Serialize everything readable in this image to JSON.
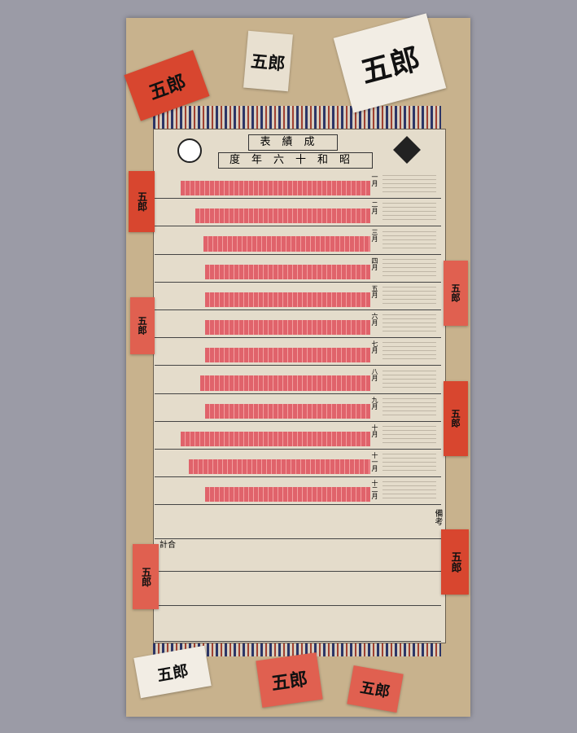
{
  "header": {
    "title": "成績表",
    "year": "昭和十六年度"
  },
  "months": [
    "一月",
    "二月",
    "三月",
    "四月",
    "五月",
    "六月",
    "七月",
    "八月",
    "九月",
    "十月",
    "十一月",
    "十二月"
  ],
  "footer": {
    "total": "合計",
    "remarks": "備考"
  },
  "stickers": [
    "五郎",
    "五郎",
    "五郎",
    "五郎",
    "五郎",
    "五郎",
    "五郎",
    "五郎",
    "五郎",
    "五郎",
    "五郎",
    "五郎"
  ]
}
